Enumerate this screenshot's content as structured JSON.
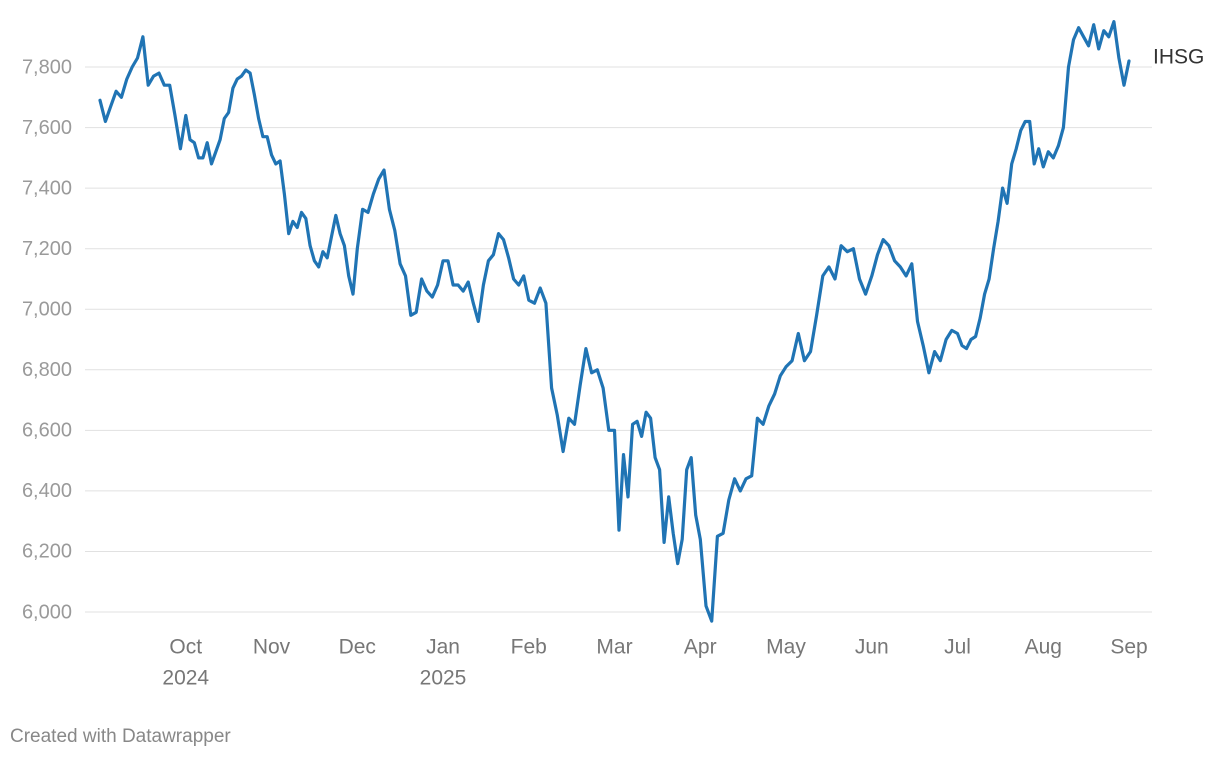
{
  "chart_data": {
    "type": "line",
    "credit": "Created with Datawrapper",
    "xlim": [
      "2024-09",
      "2025-09"
    ],
    "xticks": [
      {
        "value": "2024-10",
        "label": "Oct",
        "year": "2024"
      },
      {
        "value": "2024-11",
        "label": "Nov"
      },
      {
        "value": "2024-12",
        "label": "Dec"
      },
      {
        "value": "2025-01",
        "label": "Jan",
        "year": "2025"
      },
      {
        "value": "2025-02",
        "label": "Feb"
      },
      {
        "value": "2025-03",
        "label": "Mar"
      },
      {
        "value": "2025-04",
        "label": "Apr"
      },
      {
        "value": "2025-05",
        "label": "May"
      },
      {
        "value": "2025-06",
        "label": "Jun"
      },
      {
        "value": "2025-07",
        "label": "Jul"
      },
      {
        "value": "2025-08",
        "label": "Aug"
      },
      {
        "value": "2025-09",
        "label": "Sep"
      }
    ],
    "ylim": [
      5960,
      7960
    ],
    "yticks": [
      {
        "value": 6000,
        "label": "6,000"
      },
      {
        "value": 6200,
        "label": "6,200"
      },
      {
        "value": 6400,
        "label": "6,400"
      },
      {
        "value": 6600,
        "label": "6,600"
      },
      {
        "value": 6800,
        "label": "6,800"
      },
      {
        "value": 7000,
        "label": "7,000"
      },
      {
        "value": 7200,
        "label": "7,200"
      },
      {
        "value": 7400,
        "label": "7,400"
      },
      {
        "value": 7600,
        "label": "7,600"
      },
      {
        "value": 7800,
        "label": "7,800"
      }
    ],
    "grid": true,
    "x": [
      "2024-09",
      "2024-09",
      "2024-09",
      "2024-09",
      "2024-09",
      "2024-09",
      "2024-09",
      "2024-09",
      "2024-09",
      "2024-09",
      "2024-09",
      "2024-09",
      "2024-09",
      "2024-09",
      "2024-09",
      "2024-09",
      "2024-10",
      "2024-10",
      "2024-10",
      "2024-10",
      "2024-10",
      "2024-10",
      "2024-10",
      "2024-10",
      "2024-10",
      "2024-10",
      "2024-10",
      "2024-10",
      "2024-10",
      "2024-10",
      "2024-10",
      "2024-10",
      "2024-10",
      "2024-10",
      "2024-10",
      "2024-10",
      "2024-11",
      "2024-11",
      "2024-11",
      "2024-11",
      "2024-11",
      "2024-11",
      "2024-11",
      "2024-11",
      "2024-11",
      "2024-11",
      "2024-11",
      "2024-11",
      "2024-11",
      "2024-11",
      "2024-11",
      "2024-11",
      "2024-11",
      "2024-11",
      "2024-11",
      "2024-11",
      "2024-12",
      "2024-12",
      "2024-12",
      "2024-12",
      "2024-12",
      "2024-12",
      "2024-12",
      "2024-12",
      "2024-12",
      "2024-12",
      "2024-12",
      "2024-12",
      "2024-12",
      "2024-12",
      "2024-12",
      "2024-12",
      "2025-01",
      "2025-01",
      "2025-01",
      "2025-01",
      "2025-01",
      "2025-01",
      "2025-01",
      "2025-01",
      "2025-01",
      "2025-01",
      "2025-01",
      "2025-01",
      "2025-01",
      "2025-01",
      "2025-01",
      "2025-01",
      "2025-01",
      "2025-02",
      "2025-02",
      "2025-02",
      "2025-02",
      "2025-02",
      "2025-02",
      "2025-02",
      "2025-02",
      "2025-02",
      "2025-02",
      "2025-02",
      "2025-02",
      "2025-02",
      "2025-02",
      "2025-02",
      "2025-03",
      "2025-03",
      "2025-03",
      "2025-03",
      "2025-03",
      "2025-03",
      "2025-03",
      "2025-03",
      "2025-03",
      "2025-03",
      "2025-03",
      "2025-03",
      "2025-03",
      "2025-03",
      "2025-03",
      "2025-03",
      "2025-03",
      "2025-03",
      "2025-03",
      "2025-04",
      "2025-04",
      "2025-04",
      "2025-04",
      "2025-04",
      "2025-04",
      "2025-04",
      "2025-04",
      "2025-04",
      "2025-04",
      "2025-04",
      "2025-04",
      "2025-04",
      "2025-04",
      "2025-04",
      "2025-05",
      "2025-05",
      "2025-05",
      "2025-05",
      "2025-05",
      "2025-05",
      "2025-05",
      "2025-05",
      "2025-05",
      "2025-05",
      "2025-05",
      "2025-05",
      "2025-05",
      "2025-05",
      "2025-06",
      "2025-06",
      "2025-06",
      "2025-06",
      "2025-06",
      "2025-06",
      "2025-06",
      "2025-06",
      "2025-06",
      "2025-06",
      "2025-06",
      "2025-06",
      "2025-06",
      "2025-06",
      "2025-06",
      "2025-07",
      "2025-07",
      "2025-07",
      "2025-07",
      "2025-07",
      "2025-07",
      "2025-07",
      "2025-07",
      "2025-07",
      "2025-07",
      "2025-07",
      "2025-07",
      "2025-07",
      "2025-07",
      "2025-07",
      "2025-07",
      "2025-07",
      "2025-07",
      "2025-07",
      "2025-08",
      "2025-08",
      "2025-08",
      "2025-08",
      "2025-08",
      "2025-08",
      "2025-08",
      "2025-08",
      "2025-08",
      "2025-08",
      "2025-08",
      "2025-08",
      "2025-08",
      "2025-08",
      "2025-08",
      "2025-08",
      "2025-08",
      "2025-09"
    ],
    "series": [
      {
        "name": "IHSG",
        "color": "#2074b4",
        "values": [
          7690,
          7620,
          7670,
          7720,
          7700,
          7760,
          7800,
          7830,
          7900,
          7740,
          7770,
          7780,
          7740,
          7740,
          7640,
          7530,
          7640,
          7560,
          7550,
          7500,
          7500,
          7550,
          7480,
          7520,
          7560,
          7630,
          7650,
          7730,
          7760,
          7770,
          7790,
          7780,
          7710,
          7630,
          7570,
          7570,
          7510,
          7480,
          7490,
          7380,
          7250,
          7290,
          7270,
          7320,
          7300,
          7210,
          7160,
          7140,
          7190,
          7170,
          7240,
          7310,
          7250,
          7210,
          7110,
          7050,
          7200,
          7330,
          7320,
          7380,
          7430,
          7460,
          7330,
          7260,
          7150,
          7110,
          6980,
          6990,
          7100,
          7060,
          7040,
          7080,
          7160,
          7160,
          7080,
          7080,
          7060,
          7090,
          7020,
          6960,
          7080,
          7160,
          7180,
          7250,
          7230,
          7170,
          7100,
          7080,
          7110,
          7030,
          7020,
          7070,
          7020,
          6740,
          6650,
          6530,
          6640,
          6620,
          6750,
          6870,
          6790,
          6800,
          6740,
          6600,
          6600,
          6270,
          6520,
          6380,
          6620,
          6630,
          6580,
          6660,
          6640,
          6510,
          6470,
          6230,
          6380,
          6260,
          6160,
          6240,
          6470,
          6510,
          6320,
          6240,
          6020,
          5970,
          6250,
          6260,
          6370,
          6440,
          6400,
          6440,
          6450,
          6640,
          6620,
          6680,
          6720,
          6780,
          6810,
          6830,
          6920,
          6830,
          6860,
          6980,
          7110,
          7140,
          7100,
          7210,
          7190,
          7200,
          7100,
          7050,
          7110,
          7180,
          7230,
          7210,
          7160,
          7140,
          7110,
          7150,
          6960,
          6880,
          6790,
          6860,
          6830,
          6900,
          6930,
          6920,
          6880,
          6870,
          6900,
          6910,
          6970,
          7050,
          7100,
          7200,
          7290,
          7400,
          7350,
          7480,
          7530,
          7590,
          7620,
          7620,
          7480,
          7530,
          7470,
          7520,
          7500,
          7540,
          7600,
          7800,
          7890,
          7930,
          7900,
          7870,
          7940,
          7860,
          7920,
          7900,
          7950,
          7830,
          7740,
          7820
        ]
      }
    ]
  }
}
